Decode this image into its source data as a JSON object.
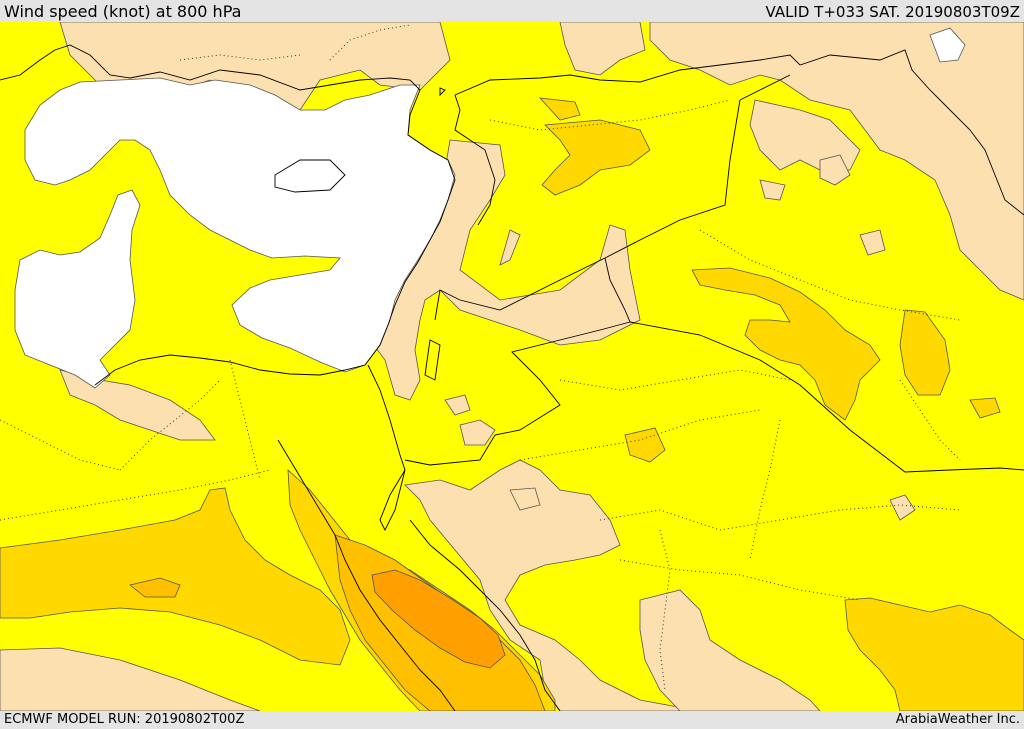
{
  "header": {
    "title": "Wind speed (knot) at 800 hPa",
    "valid": "VALID T+033 SAT. 20190803T09Z"
  },
  "footer": {
    "model_run": "ECMWF MODEL RUN: 20190802T00Z",
    "credit": "ArabiaWeather Inc."
  },
  "colors": {
    "calm_white": "#ffffff",
    "low_tan": "#fde0b0",
    "mid_yellow": "#ffff00",
    "high_gold": "#ffd800",
    "higher_amber": "#ffc000",
    "highest_orange": "#ff9f00"
  }
}
